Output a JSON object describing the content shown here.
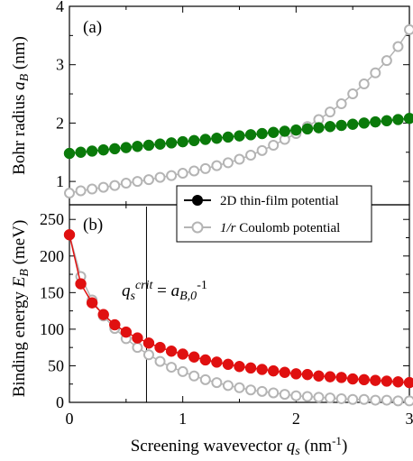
{
  "chart_data": [
    {
      "type": "line",
      "panel_label": "(a)",
      "ylabel": "Bohr radius",
      "ylabel_sym": "a",
      "ylabel_sub": "B",
      "ylabel_unit": " (nm)",
      "xlim": [
        0,
        3
      ],
      "ylim": [
        0.6,
        4
      ],
      "yticks": [
        "1",
        "2",
        "3",
        "4"
      ],
      "ytick_values": [
        1,
        2,
        3,
        4
      ],
      "grid": false,
      "x": [
        0,
        0.1,
        0.2,
        0.3,
        0.4,
        0.5,
        0.6,
        0.7,
        0.8,
        0.9,
        1.0,
        1.1,
        1.2,
        1.3,
        1.4,
        1.5,
        1.6,
        1.7,
        1.8,
        1.9,
        2.0,
        2.1,
        2.2,
        2.3,
        2.4,
        2.5,
        2.6,
        2.7,
        2.8,
        2.9,
        3.0
      ],
      "series": [
        {
          "name": "2D thin-film potential",
          "color": "#0a7a0a",
          "marker": "filled-circle",
          "values": [
            1.48,
            1.5,
            1.52,
            1.54,
            1.56,
            1.58,
            1.6,
            1.62,
            1.64,
            1.66,
            1.68,
            1.7,
            1.72,
            1.74,
            1.76,
            1.78,
            1.8,
            1.82,
            1.84,
            1.86,
            1.88,
            1.9,
            1.92,
            1.94,
            1.96,
            1.98,
            2.0,
            2.02,
            2.04,
            2.06,
            2.08
          ]
        },
        {
          "name": "1/r Coulomb potential",
          "color": "#b4b4b4",
          "marker": "open-circle",
          "values": [
            0.8,
            0.84,
            0.87,
            0.9,
            0.93,
            0.97,
            1.0,
            1.03,
            1.07,
            1.1,
            1.14,
            1.18,
            1.22,
            1.27,
            1.32,
            1.38,
            1.45,
            1.53,
            1.62,
            1.72,
            1.82,
            1.94,
            2.06,
            2.19,
            2.33,
            2.5,
            2.67,
            2.86,
            3.07,
            3.31,
            3.6
          ]
        }
      ]
    },
    {
      "type": "line",
      "panel_label": "(b)",
      "ylabel": "Binding energy",
      "ylabel_sym": "E",
      "ylabel_sub": "B",
      "ylabel_unit": " (meV)",
      "xlabel": "Screening wavevector",
      "xlabel_sym": "q",
      "xlabel_sub": "s",
      "xlabel_unit": " (nm",
      "xlabel_sup": "-1",
      "xlabel_close": ")",
      "xlim": [
        0,
        3
      ],
      "ylim": [
        0,
        270
      ],
      "xticks": [
        "0",
        "1",
        "2",
        "3"
      ],
      "xtick_values": [
        0,
        1,
        2,
        3
      ],
      "yticks": [
        "0",
        "50",
        "100",
        "150",
        "200",
        "250"
      ],
      "ytick_values": [
        0,
        50,
        100,
        150,
        200,
        250
      ],
      "grid": false,
      "annotation": {
        "x": 0.68,
        "q": "q",
        "s": "s",
        "crit": "crit",
        "eq": " = ",
        "a": "a",
        "b0": "B,0",
        "sup": "-1"
      },
      "x": [
        0,
        0.1,
        0.2,
        0.3,
        0.4,
        0.5,
        0.6,
        0.7,
        0.8,
        0.9,
        1.0,
        1.1,
        1.2,
        1.3,
        1.4,
        1.5,
        1.6,
        1.7,
        1.8,
        1.9,
        2.0,
        2.1,
        2.2,
        2.3,
        2.4,
        2.5,
        2.6,
        2.7,
        2.8,
        2.9,
        3.0
      ],
      "series": [
        {
          "name": "2D thin-film potential",
          "color": "#e01010",
          "marker": "filled-circle",
          "values": [
            229,
            162,
            136,
            120,
            106,
            96,
            88,
            81,
            75,
            70,
            66,
            62,
            58,
            55,
            52,
            49,
            47,
            45,
            43,
            41,
            39,
            38,
            36,
            35,
            34,
            32,
            31,
            30,
            29,
            28,
            27
          ]
        },
        {
          "name": "1/r Coulomb potential",
          "color": "#b4b4b4",
          "marker": "open-circle",
          "values": [
            229,
            172,
            140,
            118,
            101,
            87,
            75,
            65,
            56,
            48,
            42,
            36,
            31,
            27,
            23,
            20,
            17,
            15,
            13,
            11,
            9,
            8,
            7,
            6,
            5,
            4,
            4,
            3,
            3,
            2,
            2
          ]
        }
      ]
    }
  ],
  "legend": {
    "placement": "top-right of panel (b)",
    "entries": [
      "2D thin-film potential",
      "1/r Coulomb potential"
    ],
    "entry1_text": "2D thin-film potential",
    "entry2_r": "1/r",
    "entry2_rest": " Coulomb potential"
  }
}
